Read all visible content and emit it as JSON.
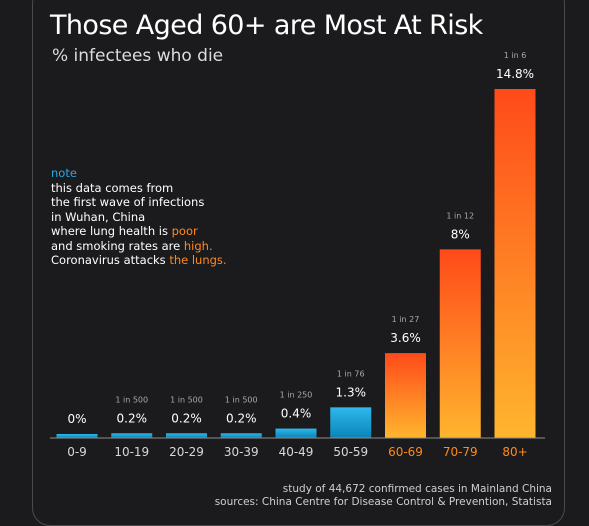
{
  "title": "Those Aged 60+ are Most At Risk",
  "subtitle": "% infectees who die",
  "note": {
    "heading": "note",
    "line1": "this data comes from",
    "line2": "the first wave of infections",
    "line3": "in Wuhan, China",
    "line4_pre": "where lung health is ",
    "line4_hl": "poor",
    "line5_pre": "and smoking rates are ",
    "line5_hl": "high.",
    "line6_pre": "Coronavirus attacks ",
    "line6_hl": "the lungs."
  },
  "footer": {
    "line1": "study of 44,672 confirmed cases in Mainland China",
    "line2": "sources: China Centre for Disease Control & Prevention, Statista"
  },
  "colors": {
    "background": "#1b1b1d",
    "low_bar_top": "#2fb8ec",
    "low_bar_bottom": "#0a84b8",
    "high_bar_top": "#ff4a1a",
    "high_bar_bottom": "#ffb52e",
    "low_axis_label": "#d8d8d8",
    "high_axis_label": "#ff8a1c",
    "value_label": "#ffffff",
    "ratio_label": "#a9a9a9",
    "axis": "#8c8c8c"
  },
  "chart_data": {
    "type": "bar",
    "categories": [
      "0-9",
      "10-19",
      "20-29",
      "30-39",
      "40-49",
      "50-59",
      "60-69",
      "70-79",
      "80+"
    ],
    "values": [
      0,
      0.2,
      0.2,
      0.2,
      0.4,
      1.3,
      3.6,
      8,
      14.8
    ],
    "value_labels": [
      "0%",
      "0.2%",
      "0.2%",
      "0.2%",
      "0.4%",
      "1.3%",
      "3.6%",
      "8%",
      "14.8%"
    ],
    "ratio_labels": [
      "",
      "1 in 500",
      "1 in 500",
      "1 in 500",
      "1 in 250",
      "1 in 76",
      "1 in 27",
      "1 in 12",
      "1 in 6"
    ],
    "highlight_from_index": 6,
    "ylim": [
      0,
      14.8
    ],
    "grid": false,
    "title": "Those Aged 60+ are Most At Risk",
    "subtitle": "% infectees who die"
  }
}
